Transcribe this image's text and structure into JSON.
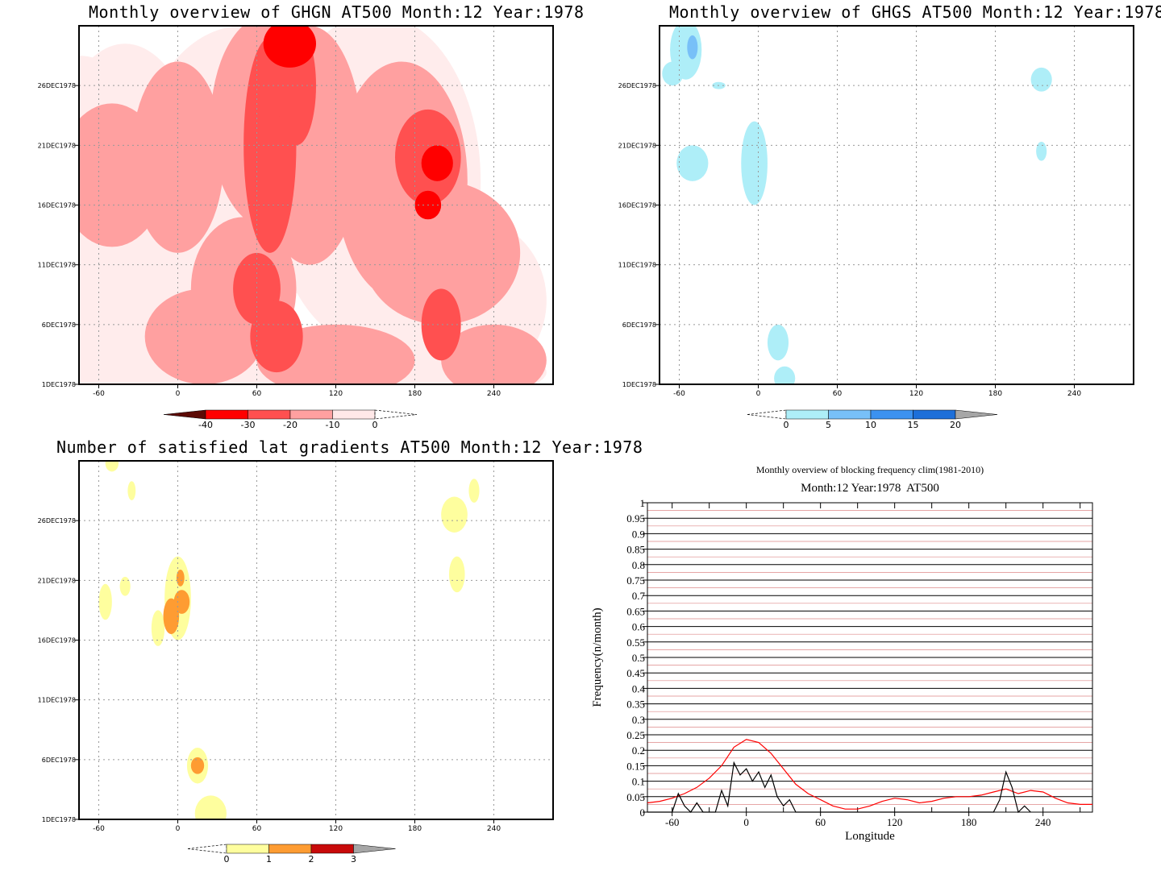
{
  "chart_data": [
    {
      "id": "ghgn",
      "type": "heatmap",
      "title": "Monthly overview of GHGN AT500 Month:12 Year:1978",
      "xlim": [
        -75,
        285
      ],
      "x_ticks": [
        "-60",
        "0",
        "60",
        "120",
        "180",
        "240"
      ],
      "x_tick_values": [
        -60,
        0,
        60,
        120,
        180,
        240
      ],
      "y_ticks": [
        "1DEC1978",
        "6DEC1978",
        "11DEC1978",
        "16DEC1978",
        "21DEC1978",
        "26DEC1978"
      ],
      "y_tick_values": [
        1,
        6,
        11,
        16,
        21,
        26
      ],
      "ylim": [
        1,
        31
      ],
      "colorbar": {
        "labels": [
          "-40",
          "-30",
          "-20",
          "-10",
          "0"
        ],
        "levels": [
          -40,
          -30,
          -20,
          -10,
          0
        ],
        "colors": [
          "#5c0a05",
          "#ff0000",
          "#ff5050",
          "#ffa0a0",
          "#ffe8e8"
        ]
      },
      "contours": [
        {
          "level": -5,
          "color": "#ffecec",
          "blobs": [
            [
              -75,
              12.5,
              75,
              16
            ],
            [
              -40,
              15.5,
              62,
              14
            ],
            [
              50,
              19,
              80,
              12
            ],
            [
              150,
              18,
              80,
              14
            ],
            [
              220,
              8,
              60,
              7
            ],
            [
              120,
              2,
              160,
              3
            ]
          ]
        },
        {
          "level": -10,
          "color": "#ffa0a0",
          "blobs": [
            [
              -50,
              18.5,
              40,
              6
            ],
            [
              0,
              20,
              35,
              8
            ],
            [
              70,
              23,
              45,
              9
            ],
            [
              100,
              21,
              40,
              10
            ],
            [
              170,
              18,
              50,
              10
            ],
            [
              200,
              12,
              60,
              6
            ],
            [
              50,
              9,
              40,
              6
            ],
            [
              20,
              5,
              45,
              4
            ],
            [
              120,
              3,
              60,
              3
            ],
            [
              240,
              3,
              40,
              3
            ]
          ]
        },
        {
          "level": -20,
          "color": "#ff5050",
          "blobs": [
            [
              70,
              21,
              20,
              9
            ],
            [
              90,
              26,
              15,
              5
            ],
            [
              190,
              20,
              25,
              4
            ],
            [
              60,
              9,
              18,
              3
            ],
            [
              75,
              5,
              20,
              3
            ],
            [
              200,
              6,
              15,
              3
            ]
          ]
        },
        {
          "level": -30,
          "color": "#ff0000",
          "blobs": [
            [
              85,
              29.5,
              20,
              2
            ],
            [
              197,
              19.5,
              12,
              1.5
            ],
            [
              190,
              16,
              10,
              1.2
            ]
          ]
        }
      ]
    },
    {
      "id": "ghgs",
      "type": "heatmap",
      "title": "Monthly overview of GHGS AT500 Month:12 Year:1978",
      "xlim": [
        -75,
        285
      ],
      "x_ticks": [
        "-60",
        "0",
        "60",
        "120",
        "180",
        "240"
      ],
      "x_tick_values": [
        -60,
        0,
        60,
        120,
        180,
        240
      ],
      "y_ticks": [
        "1DEC1978",
        "6DEC1978",
        "11DEC1978",
        "16DEC1978",
        "21DEC1978",
        "26DEC1978"
      ],
      "y_tick_values": [
        1,
        6,
        11,
        16,
        21,
        26
      ],
      "ylim": [
        1,
        31
      ],
      "colorbar": {
        "labels": [
          "0",
          "5",
          "10",
          "15",
          "20"
        ],
        "levels": [
          0,
          5,
          10,
          15,
          20
        ],
        "colors": [
          "#aeeef8",
          "#78c0f8",
          "#3c92f0",
          "#1d6fd9",
          "#a6a6a6"
        ]
      },
      "contours": [
        {
          "level": 0,
          "color": "#aeeef8",
          "blobs": [
            [
              -55,
              29,
              12,
              2.5
            ],
            [
              -65,
              27,
              8,
              1
            ],
            [
              -30,
              26,
              5,
              0.3
            ],
            [
              -50,
              19.5,
              12,
              1.5
            ],
            [
              -3,
              19.5,
              10,
              3.5
            ],
            [
              15,
              4.5,
              8,
              1.5
            ],
            [
              20,
              1.5,
              8,
              1
            ],
            [
              215,
              26.5,
              8,
              1
            ],
            [
              215,
              20.5,
              4,
              0.8
            ]
          ]
        },
        {
          "level": 5,
          "color": "#78c0f8",
          "blobs": [
            [
              -50,
              29.2,
              4,
              1
            ]
          ]
        }
      ]
    },
    {
      "id": "lat-gradients",
      "type": "heatmap",
      "title": "Number of satisfied lat gradients AT500 Month:12 Year:1978",
      "xlim": [
        -75,
        285
      ],
      "x_ticks": [
        "-60",
        "0",
        "60",
        "120",
        "180",
        "240"
      ],
      "x_tick_values": [
        -60,
        0,
        60,
        120,
        180,
        240
      ],
      "y_ticks": [
        "1DEC1978",
        "6DEC1978",
        "11DEC1978",
        "16DEC1978",
        "21DEC1978",
        "26DEC1978"
      ],
      "y_tick_values": [
        1,
        6,
        11,
        16,
        21,
        26
      ],
      "ylim": [
        1,
        31
      ],
      "colorbar": {
        "labels": [
          "0",
          "1",
          "2",
          "3"
        ],
        "levels": [
          0,
          1,
          2,
          3
        ],
        "colors": [
          "#fefe9e",
          "#fe9c32",
          "#c80a0a",
          "#a6a6a6"
        ]
      },
      "contours": [
        {
          "level": 1,
          "color": "#fefe9e",
          "blobs": [
            [
              -50,
              30.8,
              5,
              0.7
            ],
            [
              -35,
              28.5,
              3,
              0.8
            ],
            [
              -55,
              19.2,
              5,
              1.5
            ],
            [
              -40,
              20.5,
              4,
              0.8
            ],
            [
              0,
              19.5,
              10,
              3.5
            ],
            [
              -15,
              17,
              5,
              1.5
            ],
            [
              15,
              5.5,
              8,
              1.5
            ],
            [
              25,
              1.5,
              12,
              1.5
            ],
            [
              210,
              26.5,
              10,
              1.5
            ],
            [
              225,
              28.5,
              4,
              1
            ],
            [
              212,
              21.5,
              6,
              1.5
            ]
          ]
        },
        {
          "level": 2,
          "color": "#fe9c32",
          "blobs": [
            [
              -5,
              18,
              6,
              1.5
            ],
            [
              3,
              19.2,
              6,
              1
            ],
            [
              2,
              21.2,
              3,
              0.7
            ],
            [
              15,
              5.5,
              5,
              0.7
            ]
          ]
        }
      ]
    },
    {
      "id": "blocking-frequency",
      "type": "line",
      "title": "Monthly overview of blocking frequency clim(1981-2010)",
      "subtitle": "Month:12 Year:1978  AT500",
      "xlabel": "Longitude",
      "ylabel": "Frequency(n/month)",
      "xlim": [
        -80,
        280
      ],
      "ylim": [
        0,
        1
      ],
      "x_ticks": [
        "-60",
        "0",
        "60",
        "120",
        "180",
        "240"
      ],
      "x_tick_values": [
        -60,
        0,
        60,
        120,
        180,
        240
      ],
      "y_ticks": [
        "0",
        "0.05",
        "0.1",
        "0.15",
        "0.2",
        "0.25",
        "0.3",
        "0.35",
        "0.4",
        "0.45",
        "0.5",
        "0.55",
        "0.6",
        "0.65",
        "0.7",
        "0.75",
        "0.8",
        "0.85",
        "0.9",
        "0.95",
        "1"
      ],
      "grid": true,
      "series": [
        {
          "color": "#ff0000",
          "x": [
            -80,
            -70,
            -60,
            -50,
            -40,
            -30,
            -20,
            -10,
            0,
            10,
            20,
            30,
            40,
            50,
            60,
            70,
            80,
            90,
            100,
            110,
            120,
            130,
            140,
            150,
            160,
            170,
            180,
            190,
            200,
            210,
            220,
            230,
            240,
            250,
            260,
            270,
            280
          ],
          "y": [
            0.03,
            0.035,
            0.045,
            0.06,
            0.08,
            0.11,
            0.15,
            0.21,
            0.235,
            0.225,
            0.19,
            0.14,
            0.09,
            0.06,
            0.04,
            0.02,
            0.01,
            0.01,
            0.02,
            0.035,
            0.045,
            0.04,
            0.03,
            0.035,
            0.045,
            0.05,
            0.05,
            0.055,
            0.065,
            0.075,
            0.06,
            0.07,
            0.065,
            0.045,
            0.03,
            0.025,
            0.025
          ]
        },
        {
          "color": "#000000",
          "x": [
            -80,
            -60,
            -55,
            -50,
            -45,
            -40,
            -35,
            -30,
            -25,
            -20,
            -15,
            -10,
            -5,
            0,
            5,
            10,
            15,
            20,
            25,
            30,
            35,
            40,
            45,
            200,
            205,
            210,
            215,
            220,
            225,
            230
          ],
          "y": [
            0,
            0,
            0.06,
            0.02,
            0,
            0.03,
            0,
            0,
            0,
            0.07,
            0.02,
            0.16,
            0.12,
            0.14,
            0.1,
            0.13,
            0.08,
            0.12,
            0.05,
            0.02,
            0.04,
            0,
            0,
            0,
            0.04,
            0.13,
            0.08,
            0,
            0.02,
            0
          ]
        }
      ]
    }
  ]
}
